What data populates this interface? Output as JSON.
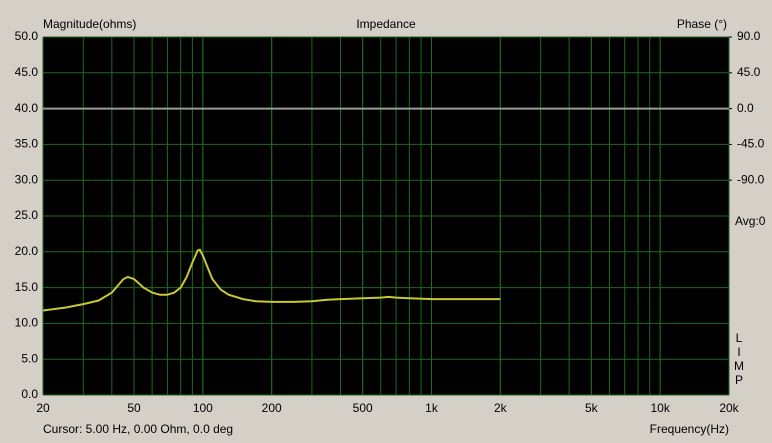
{
  "chart_data": {
    "type": "line",
    "title": "Impedance",
    "y_label": "Magnitude(ohms)",
    "y2_label": "Phase (°)",
    "x_label": "Frequency(Hz)",
    "avg_label": "Avg:0",
    "cursor_text": "Cursor: 5.00 Hz, 0.00 Ohm, 0.0 deg",
    "app_letters": [
      "L",
      "I",
      "M",
      "P"
    ],
    "log_x": true,
    "grid": true,
    "background": "#000000",
    "grid_color": "#1e6a1e",
    "xlim": [
      20,
      20000
    ],
    "xticks": [
      20,
      50,
      100,
      200,
      500,
      {
        "value": 1000,
        "label": "1k"
      },
      {
        "value": 2000,
        "label": "2k"
      },
      {
        "value": 5000,
        "label": "5k"
      },
      {
        "value": 10000,
        "label": "10k"
      },
      {
        "value": 20000,
        "label": "20k"
      }
    ],
    "ylim": [
      0,
      50
    ],
    "yticks": [
      {
        "value": 0,
        "label": "0.0"
      },
      {
        "value": 5,
        "label": "5.0"
      },
      {
        "value": 10,
        "label": "10.0"
      },
      {
        "value": 15,
        "label": "15.0"
      },
      {
        "value": 20,
        "label": "20.0"
      },
      {
        "value": 25,
        "label": "25.0"
      },
      {
        "value": 30,
        "label": "30.0"
      },
      {
        "value": 35,
        "label": "35.0"
      },
      {
        "value": 40,
        "label": "40.0"
      },
      {
        "value": 45,
        "label": "45.0"
      },
      {
        "value": 50,
        "label": "50.0"
      }
    ],
    "y2lim": [
      -360,
      90
    ],
    "y2ticks": [
      {
        "value": -90,
        "label": "-90.0"
      },
      {
        "value": -45,
        "label": "-45.0"
      },
      {
        "value": 0,
        "label": "0.0"
      },
      {
        "value": 45,
        "label": "45.0"
      },
      {
        "value": 90,
        "label": "90.0"
      }
    ],
    "series": [
      {
        "color": "#c8c832",
        "x": [
          20,
          25,
          30,
          35,
          40,
          45,
          47,
          50,
          55,
          60,
          65,
          70,
          75,
          80,
          85,
          90,
          95,
          97,
          100,
          105,
          110,
          120,
          130,
          150,
          170,
          200,
          250,
          300,
          350,
          400,
          500,
          600,
          650,
          700,
          800,
          1000,
          1500,
          2000
        ],
        "values": [
          11.8,
          12.2,
          12.7,
          13.2,
          14.3,
          16.2,
          16.5,
          16.2,
          15.0,
          14.3,
          14.0,
          14.0,
          14.3,
          15.0,
          16.5,
          18.5,
          20.2,
          20.3,
          19.5,
          17.8,
          16.2,
          14.7,
          14.0,
          13.4,
          13.1,
          13.0,
          13.0,
          13.1,
          13.3,
          13.4,
          13.5,
          13.6,
          13.7,
          13.6,
          13.5,
          13.4,
          13.4,
          13.4
        ]
      },
      {
        "color": "#9a9a9a",
        "axis": "y2",
        "x": [
          20,
          20000
        ],
        "values": [
          0,
          0
        ]
      }
    ]
  }
}
